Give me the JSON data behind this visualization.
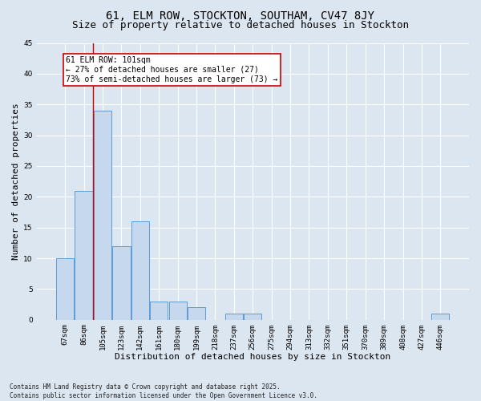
{
  "title": "61, ELM ROW, STOCKTON, SOUTHAM, CV47 8JY",
  "subtitle": "Size of property relative to detached houses in Stockton",
  "xlabel": "Distribution of detached houses by size in Stockton",
  "ylabel": "Number of detached properties",
  "categories": [
    "67sqm",
    "86sqm",
    "105sqm",
    "123sqm",
    "142sqm",
    "161sqm",
    "180sqm",
    "199sqm",
    "218sqm",
    "237sqm",
    "256sqm",
    "275sqm",
    "294sqm",
    "313sqm",
    "332sqm",
    "351sqm",
    "370sqm",
    "389sqm",
    "408sqm",
    "427sqm",
    "446sqm"
  ],
  "values": [
    10,
    21,
    34,
    12,
    16,
    3,
    3,
    2,
    0,
    1,
    1,
    0,
    0,
    0,
    0,
    0,
    0,
    0,
    0,
    0,
    1
  ],
  "bar_color": "#c5d8ed",
  "bar_edge_color": "#5b9bd5",
  "background_color": "#dce6f1",
  "grid_color": "#ffffff",
  "vline_color": "#cc0000",
  "vline_x_index": 1.5,
  "annotation_text": "61 ELM ROW: 101sqm\n← 27% of detached houses are smaller (27)\n73% of semi-detached houses are larger (73) →",
  "annotation_box_facecolor": "#ffffff",
  "annotation_box_edgecolor": "#cc0000",
  "ylim": [
    0,
    45
  ],
  "yticks": [
    0,
    5,
    10,
    15,
    20,
    25,
    30,
    35,
    40,
    45
  ],
  "footer": "Contains HM Land Registry data © Crown copyright and database right 2025.\nContains public sector information licensed under the Open Government Licence v3.0.",
  "title_fontsize": 10,
  "subtitle_fontsize": 9,
  "tick_fontsize": 6.5,
  "label_fontsize": 8,
  "annotation_fontsize": 7,
  "footer_fontsize": 5.5
}
